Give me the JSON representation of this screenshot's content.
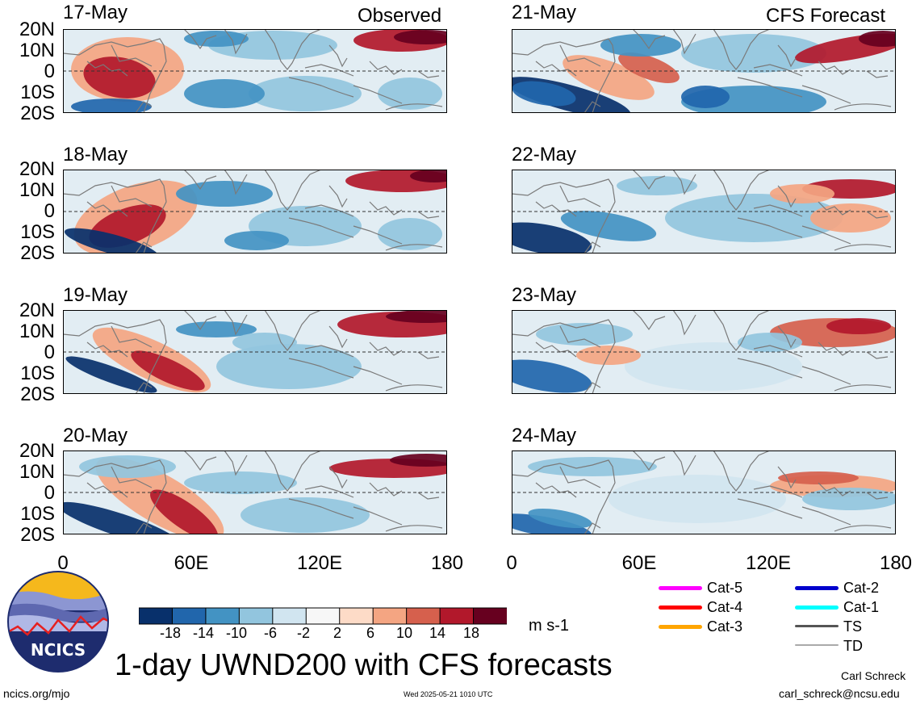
{
  "title": "1-day UWND200 with CFS forecasts",
  "observed_label": "Observed",
  "forecast_label": "CFS Forecast",
  "observed_dates": [
    "17-May",
    "18-May",
    "19-May",
    "20-May"
  ],
  "forecast_dates": [
    "21-May",
    "22-May",
    "23-May",
    "24-May"
  ],
  "lat_ticks": [
    "20N",
    "10N",
    "0",
    "10S",
    "20S"
  ],
  "lon_ticks": [
    "0",
    "60E",
    "120E",
    "180"
  ],
  "colorbar": {
    "ticks": [
      "-18",
      "-14",
      "-10",
      "-6",
      "-2",
      "2",
      "6",
      "10",
      "14",
      "18"
    ],
    "colors": [
      "#08306b",
      "#2166ac",
      "#4393c3",
      "#92c5de",
      "#d1e5f0",
      "#f7f7f7",
      "#fddbc7",
      "#f4a582",
      "#d6604d",
      "#b2182b",
      "#67001f"
    ],
    "units": "m s-1"
  },
  "legend": [
    {
      "label": "Cat-5",
      "color": "#ff00ff"
    },
    {
      "label": "Cat-4",
      "color": "#ff0000"
    },
    {
      "label": "Cat-3",
      "color": "#ffa500"
    },
    {
      "label": "Cat-2",
      "color": "#0000cd"
    },
    {
      "label": "Cat-1",
      "color": "#00ffff"
    },
    {
      "label": "TS",
      "color": "#555555"
    },
    {
      "label": "TD",
      "color": "#aaaaaa"
    }
  ],
  "logo_text": "NCICS",
  "footer": {
    "left": "ncics.org/mjo",
    "center": "Wed 2025-05-21 1010 UTC",
    "author": "Carl Schreck",
    "email": "carl_schreck@ncsu.edu"
  }
}
